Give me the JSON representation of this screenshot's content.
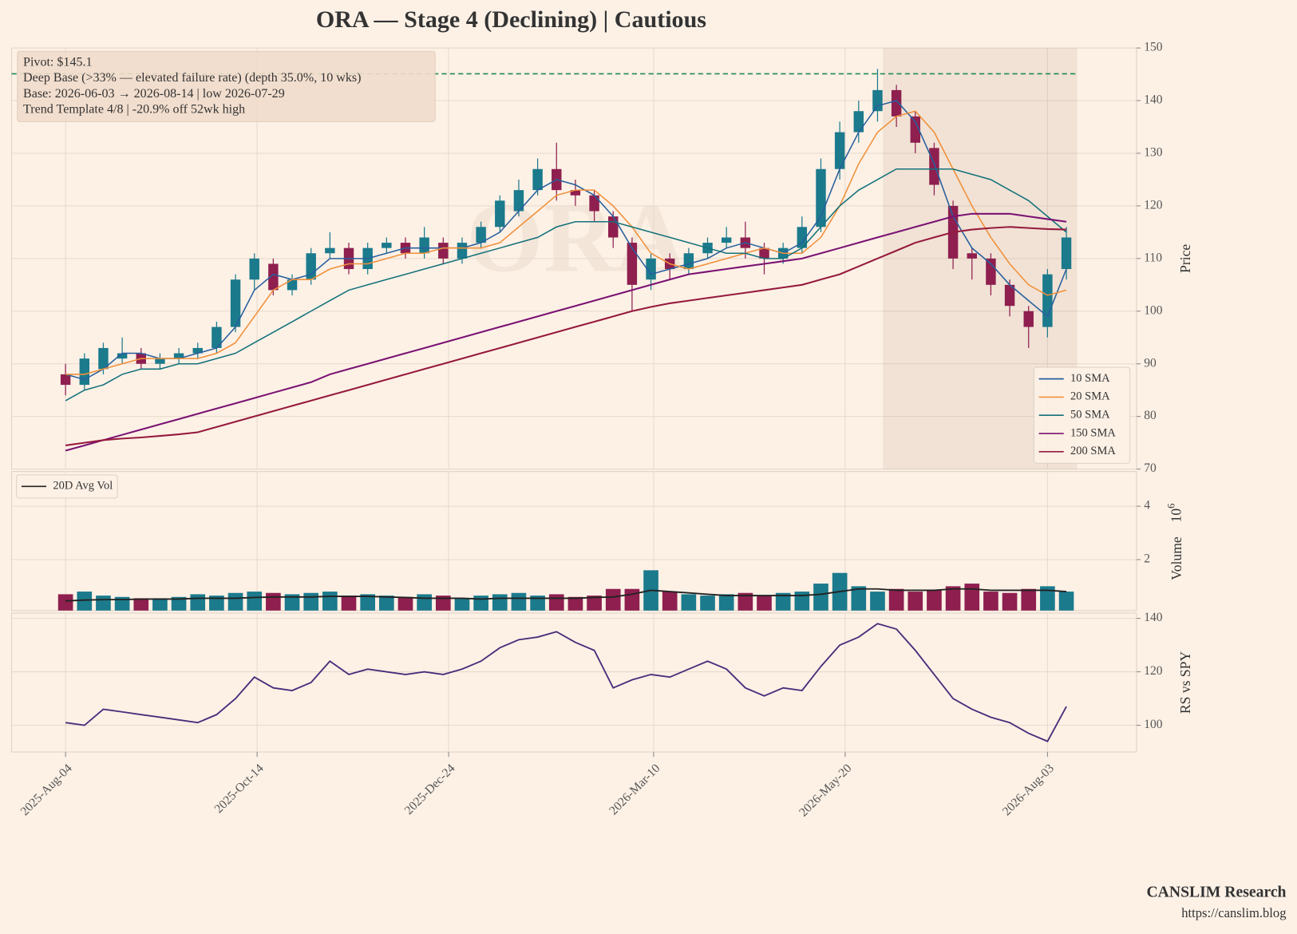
{
  "title": "ORA  —  Stage 4 (Declining)  |  Cautious",
  "annotation": [
    "Pivot: $145.1",
    "Deep Base (>33% — elevated failure rate)  (depth 35.0%, 10 wks)",
    "Base: 2026-06-03 → 2026-08-14  |  low 2026-07-29",
    "Trend Template 4/8  |  -20.9% off 52wk high"
  ],
  "footer": [
    "CANSLIM Research",
    "https://canslim.blog"
  ],
  "x": [
    "2025-08-04",
    "2025-08-11",
    "2025-08-18",
    "2025-08-25",
    "2025-09-01",
    "2025-09-08",
    "2025-09-15",
    "2025-09-22",
    "2025-09-29",
    "2025-10-06",
    "2025-10-13",
    "2025-10-20",
    "2025-10-27",
    "2025-11-03",
    "2025-11-10",
    "2025-11-17",
    "2025-11-24",
    "2025-12-01",
    "2025-12-08",
    "2025-12-15",
    "2025-12-22",
    "2025-12-29",
    "2026-01-05",
    "2026-01-12",
    "2026-01-19",
    "2026-01-26",
    "2026-02-02",
    "2026-02-09",
    "2026-02-16",
    "2026-02-23",
    "2026-03-02",
    "2026-03-09",
    "2026-03-16",
    "2026-03-23",
    "2026-03-30",
    "2026-04-06",
    "2026-04-13",
    "2026-04-20",
    "2026-04-27",
    "2026-05-04",
    "2026-05-11",
    "2026-05-18",
    "2026-05-25",
    "2026-06-01",
    "2026-06-08",
    "2026-06-15",
    "2026-06-22",
    "2026-06-29",
    "2026-07-06",
    "2026-07-13",
    "2026-07-20",
    "2026-07-27",
    "2026-08-03",
    "2026-08-10"
  ],
  "xlim": [
    "2025-07-15",
    "2026-09-05"
  ],
  "xticks": [
    {
      "value": "2025-08-04",
      "label": "2025-Aug-04"
    },
    {
      "value": "2025-10-14",
      "label": "2025-Oct-14"
    },
    {
      "value": "2025-12-24",
      "label": "2025-Dec-24"
    },
    {
      "value": "2026-03-10",
      "label": "2026-Mar-10"
    },
    {
      "value": "2026-05-20",
      "label": "2026-May-20"
    },
    {
      "value": "2026-08-03",
      "label": "2026-Aug-03"
    }
  ],
  "grid": true,
  "chart_data": [
    {
      "type": "candlestick",
      "ylabel": "Price",
      "ylim": [
        70,
        150
      ],
      "yticks": [
        70,
        80,
        90,
        100,
        110,
        120,
        130,
        140,
        150
      ],
      "up_color": "#1b7a8c",
      "down_color": "#8e1f4f",
      "watermark": "ORA",
      "pivot": 145.1,
      "pivot_color": "#1f8a4c",
      "base_start": "2026-06-03",
      "base_end": "2026-08-14",
      "open": [
        88,
        86,
        89,
        91,
        92,
        90,
        91,
        92,
        93,
        97,
        106,
        109,
        104,
        106,
        111,
        112,
        108,
        112,
        113,
        111,
        113,
        110,
        113,
        116,
        119,
        123,
        127,
        123,
        122,
        118,
        113,
        106,
        110,
        108,
        111,
        113,
        114,
        112,
        110,
        112,
        116,
        127,
        134,
        138,
        142,
        137,
        131,
        120,
        111,
        110,
        105,
        100,
        97,
        108
      ],
      "high": [
        90,
        92,
        94,
        95,
        93,
        92,
        93,
        94,
        98,
        107,
        111,
        110,
        107,
        112,
        115,
        113,
        113,
        114,
        114,
        116,
        114,
        114,
        117,
        122,
        125,
        129,
        132,
        125,
        123,
        119,
        114,
        111,
        111,
        112,
        114,
        116,
        117,
        113,
        113,
        118,
        129,
        136,
        140,
        146,
        143,
        138,
        132,
        121,
        112,
        111,
        106,
        101,
        108,
        116
      ],
      "low": [
        84,
        85,
        88,
        90,
        89,
        89,
        90,
        91,
        92,
        96,
        104,
        103,
        103,
        105,
        110,
        107,
        107,
        111,
        110,
        110,
        109,
        109,
        112,
        115,
        118,
        122,
        121,
        120,
        117,
        112,
        100,
        104,
        106,
        107,
        110,
        112,
        110,
        107,
        109,
        111,
        115,
        125,
        132,
        136,
        135,
        130,
        122,
        108,
        106,
        103,
        99,
        93,
        95,
        106
      ],
      "close": [
        86,
        91,
        93,
        92,
        90,
        91,
        92,
        93,
        97,
        106,
        110,
        104,
        106,
        111,
        112,
        108,
        112,
        113,
        111,
        114,
        110,
        113,
        116,
        121,
        123,
        127,
        123,
        122,
        119,
        114,
        105,
        110,
        108,
        111,
        113,
        114,
        112,
        110,
        112,
        116,
        127,
        134,
        138,
        142,
        137,
        132,
        124,
        110,
        110,
        105,
        101,
        97,
        107,
        114
      ],
      "legend": "lower right",
      "series": [
        {
          "name": "10 SMA",
          "color": "#275f9e",
          "values": [
            88,
            87,
            89,
            92,
            92,
            91,
            91,
            92,
            93,
            97,
            104,
            107,
            106,
            107,
            110,
            110,
            110,
            111,
            112,
            112,
            112,
            112,
            113,
            115,
            119,
            123,
            125,
            124,
            122,
            118,
            112,
            107,
            108,
            109,
            110,
            112,
            113,
            112,
            111,
            113,
            118,
            127,
            134,
            139,
            140,
            136,
            128,
            118,
            112,
            109,
            105,
            102,
            99,
            108
          ]
        },
        {
          "name": "20 SMA",
          "color": "#f0903a",
          "values": [
            88,
            88,
            89,
            90,
            91,
            91,
            91,
            91,
            92,
            94,
            99,
            104,
            106,
            106,
            108,
            109,
            109,
            110,
            111,
            111,
            112,
            112,
            112,
            113,
            116,
            119,
            122,
            123,
            123,
            120,
            116,
            111,
            109,
            108,
            109,
            110,
            111,
            112,
            111,
            111,
            114,
            120,
            128,
            134,
            137,
            138,
            134,
            127,
            120,
            114,
            109,
            105,
            103,
            104
          ]
        },
        {
          "name": "50 SMA",
          "color": "#13727a",
          "values": [
            83,
            85,
            86,
            88,
            89,
            89,
            90,
            90,
            91,
            92,
            94,
            96,
            98,
            100,
            102,
            104,
            105,
            106,
            107,
            108,
            109,
            110,
            111,
            112,
            113,
            114,
            116,
            117,
            117,
            117,
            116,
            115,
            114,
            113,
            112,
            111,
            111,
            110,
            110,
            112,
            116,
            120,
            123,
            125,
            127,
            127,
            127,
            127,
            126,
            125,
            123,
            121,
            118,
            115
          ]
        },
        {
          "name": "150 SMA",
          "color": "#7a1273",
          "values": [
            73.5,
            74.5,
            75.5,
            76.5,
            77.5,
            78.5,
            79.5,
            80.5,
            81.5,
            82.5,
            83.5,
            84.5,
            85.5,
            86.5,
            88,
            89,
            90,
            91,
            92,
            93,
            94,
            95,
            96,
            97,
            98,
            99,
            100,
            101,
            102,
            103,
            104,
            105,
            106,
            107,
            107.5,
            108,
            108.5,
            109,
            109.5,
            110,
            111,
            112,
            113,
            114,
            115,
            116,
            117,
            118,
            118.5,
            118.5,
            118.5,
            118,
            117.5,
            117
          ]
        },
        {
          "name": "200 SMA",
          "color": "#961a3e",
          "values": [
            74.5,
            75,
            75.5,
            75.8,
            76,
            76.3,
            76.6,
            77,
            78,
            79,
            80,
            81,
            82,
            83,
            84,
            85,
            86,
            87,
            88,
            89,
            90,
            91,
            92,
            93,
            94,
            95,
            96,
            97,
            98,
            99,
            100,
            100.8,
            101.5,
            102,
            102.5,
            103,
            103.5,
            104,
            104.5,
            105,
            106,
            107,
            108.5,
            110,
            111.5,
            113,
            114,
            115,
            115.5,
            115.8,
            116,
            115.8,
            115.6,
            115.5
          ]
        }
      ]
    },
    {
      "type": "bar",
      "ylabel": "Volume",
      "offset_label": {
        "base": "10",
        "exponent": "6"
      },
      "ylim": [
        0.09,
        5.3
      ],
      "yticks": [
        2,
        4
      ],
      "values": [
        0.7,
        0.8,
        0.65,
        0.6,
        0.55,
        0.55,
        0.6,
        0.7,
        0.65,
        0.75,
        0.8,
        0.75,
        0.7,
        0.75,
        0.8,
        0.65,
        0.7,
        0.65,
        0.6,
        0.7,
        0.65,
        0.55,
        0.65,
        0.7,
        0.75,
        0.65,
        0.7,
        0.6,
        0.65,
        0.9,
        0.9,
        1.6,
        0.8,
        0.7,
        0.65,
        0.7,
        0.75,
        0.65,
        0.75,
        0.8,
        1.1,
        1.5,
        1.0,
        0.8,
        0.9,
        0.8,
        0.85,
        1.0,
        1.1,
        0.8,
        0.75,
        0.9,
        1.0,
        0.8
      ],
      "legend": "upper left",
      "series": [
        {
          "name": "20D Avg Vol",
          "color": "#222222",
          "values": [
            0.45,
            0.48,
            0.5,
            0.5,
            0.52,
            0.52,
            0.52,
            0.55,
            0.55,
            0.55,
            0.58,
            0.6,
            0.6,
            0.6,
            0.62,
            0.62,
            0.62,
            0.6,
            0.58,
            0.55,
            0.55,
            0.55,
            0.52,
            0.55,
            0.55,
            0.55,
            0.55,
            0.55,
            0.58,
            0.6,
            0.7,
            0.85,
            0.8,
            0.75,
            0.7,
            0.65,
            0.65,
            0.65,
            0.65,
            0.65,
            0.7,
            0.8,
            0.9,
            0.9,
            0.85,
            0.85,
            0.85,
            0.9,
            0.9,
            0.85,
            0.85,
            0.85,
            0.85,
            0.8
          ]
        }
      ]
    },
    {
      "type": "line",
      "ylabel": "RS vs SPY",
      "ylim": [
        90,
        142
      ],
      "yticks": [
        100,
        120,
        140
      ],
      "color": "#4b2c7a",
      "values": [
        101,
        100,
        106,
        105,
        104,
        103,
        102,
        101,
        104,
        110,
        118,
        114,
        113,
        116,
        124,
        119,
        121,
        120,
        119,
        120,
        119,
        121,
        124,
        129,
        132,
        133,
        135,
        131,
        128,
        114,
        117,
        119,
        118,
        121,
        124,
        121,
        114,
        111,
        114,
        113,
        122,
        130,
        133,
        138,
        136,
        128,
        119,
        110,
        106,
        103,
        101,
        97,
        94,
        107
      ]
    }
  ]
}
